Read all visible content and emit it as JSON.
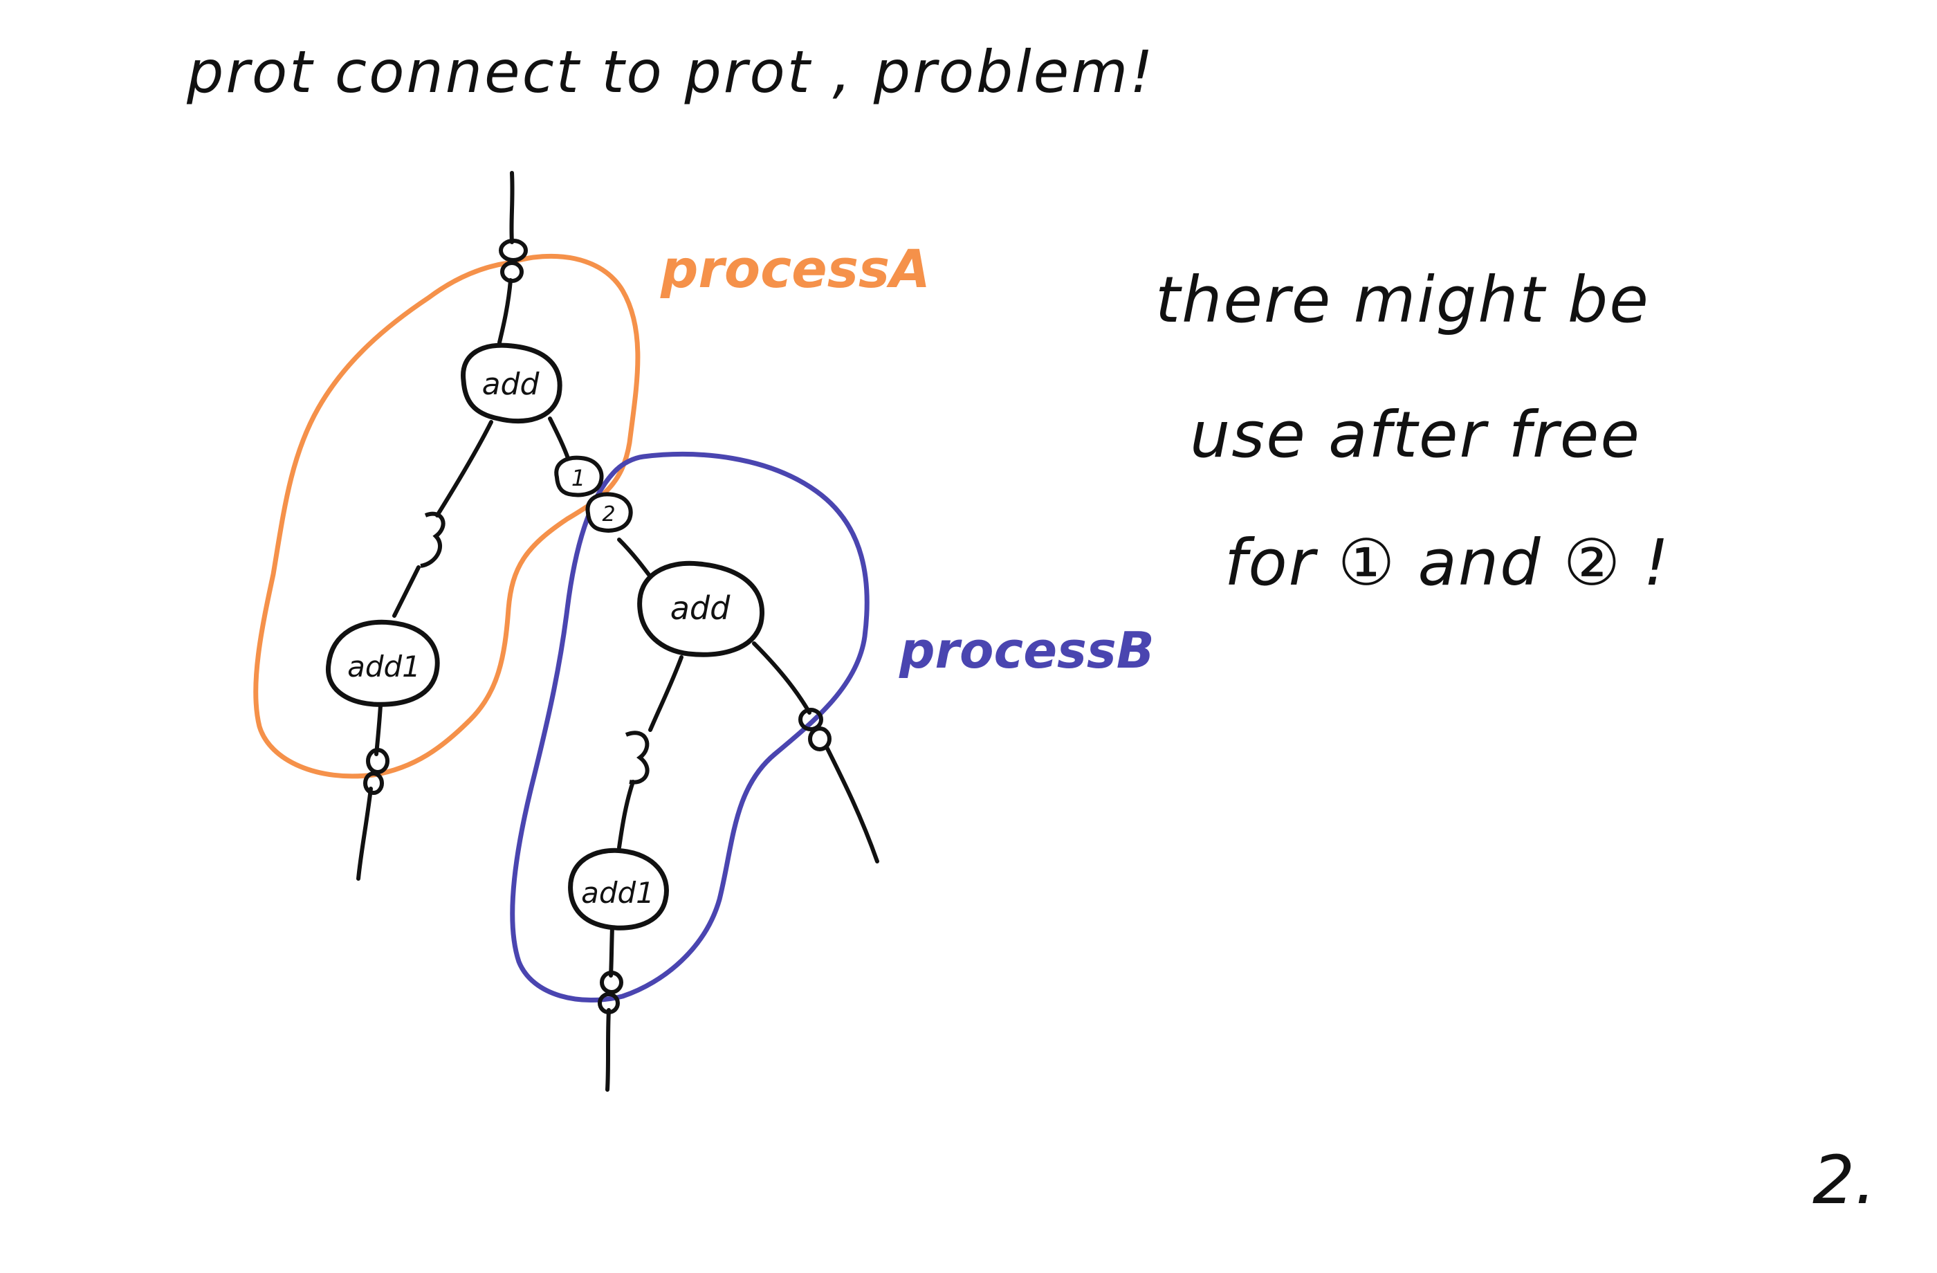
{
  "title": "prot connect to prot , problem!",
  "labels": {
    "process_a": "processA",
    "process_b": "processB"
  },
  "nodes": {
    "a_add": "add",
    "a_add1": "add1",
    "b_add": "add",
    "b_add1": "add1",
    "port_1": "1",
    "port_2": "2"
  },
  "note": {
    "line1": "there might be",
    "line2": "use after free",
    "line3": "for ① and ② !"
  },
  "page_number": "2.",
  "colors": {
    "ink": "#111111",
    "process_a": "#f5914a",
    "process_b": "#4a45b0"
  }
}
